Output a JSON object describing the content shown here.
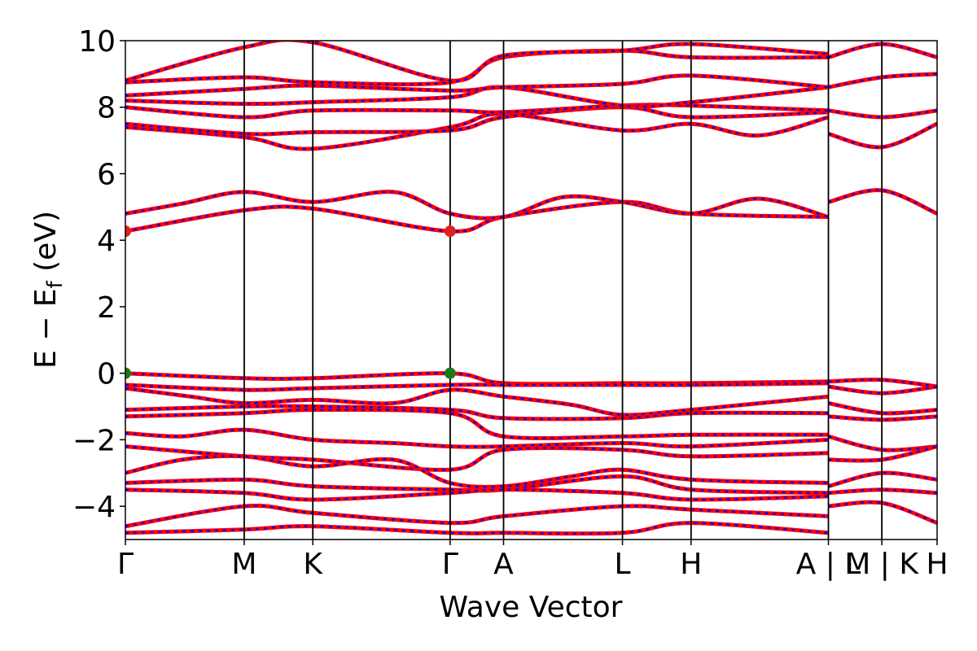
{
  "chart_data": {
    "type": "line",
    "title": "",
    "xlabel": "Wave Vector",
    "ylabel_main": "E − E",
    "ylabel_sub": "f",
    "ylabel_unit": " (eV)",
    "ylim": [
      -5,
      10
    ],
    "yticks": [
      -4,
      -2,
      0,
      2,
      4,
      6,
      8,
      10
    ],
    "ytick_labels": [
      "−4",
      "−2",
      "0",
      "2",
      "4",
      "6",
      "8",
      "10"
    ],
    "x_range": [
      0,
      1
    ],
    "kpoints": [
      {
        "label": "Γ",
        "x": 0.0
      },
      {
        "label": "M",
        "x": 0.1464
      },
      {
        "label": "K",
        "x": 0.2309
      },
      {
        "label": "Γ",
        "x": 0.4001
      },
      {
        "label": "A",
        "x": 0.4659
      },
      {
        "label": "L",
        "x": 0.6124
      },
      {
        "label": "H",
        "x": 0.6969
      },
      {
        "label": "A | L",
        "x": 0.8661
      },
      {
        "label": "M | K",
        "x": 0.9319
      },
      {
        "label": "H",
        "x": 1.0
      }
    ],
    "series_colors": {
      "spin_up": "#ff0000",
      "spin_down": "#0000ff"
    },
    "markers": [
      {
        "x": 0.0,
        "y": 4.27,
        "color": "#e02020"
      },
      {
        "x": 0.4001,
        "y": 4.27,
        "color": "#e02020"
      },
      {
        "x": 0.0,
        "y": 0.0,
        "color": "#1a7a1a"
      },
      {
        "x": 0.4001,
        "y": 0.0,
        "color": "#1a7a1a"
      }
    ],
    "bands": [
      {
        "x": [
          0,
          0.146,
          0.231,
          0.4,
          0.466,
          0.612,
          0.697,
          0.866
        ],
        "y": [
          0.0,
          -0.15,
          -0.15,
          0.0,
          -0.3,
          -0.3,
          -0.3,
          -0.25
        ]
      },
      {
        "x": [
          0,
          0.146,
          0.231,
          0.4,
          0.466,
          0.612,
          0.697,
          0.866
        ],
        "y": [
          -0.35,
          -0.5,
          -0.45,
          -0.35,
          -0.35,
          -0.35,
          -0.35,
          -0.3
        ]
      },
      {
        "x": [
          0,
          0.08,
          0.146,
          0.231,
          0.33,
          0.4,
          0.466,
          0.55,
          0.612,
          0.697,
          0.866
        ],
        "y": [
          -0.45,
          -0.7,
          -0.9,
          -0.8,
          -0.9,
          -0.5,
          -0.7,
          -0.95,
          -1.25,
          -1.1,
          -0.7
        ]
      },
      {
        "x": [
          0,
          0.146,
          0.231,
          0.4,
          0.466,
          0.612,
          0.697,
          0.866
        ],
        "y": [
          -1.1,
          -1.0,
          -1.0,
          -1.1,
          -1.35,
          -1.35,
          -1.2,
          -1.2
        ]
      },
      {
        "x": [
          0,
          0.146,
          0.231,
          0.4,
          0.466,
          0.612,
          0.697,
          0.866
        ],
        "y": [
          -1.3,
          -1.2,
          -1.1,
          -1.2,
          -1.9,
          -1.9,
          -1.85,
          -1.85
        ]
      },
      {
        "x": [
          0,
          0.07,
          0.146,
          0.231,
          0.33,
          0.4,
          0.466,
          0.612,
          0.697,
          0.866
        ],
        "y": [
          -1.8,
          -1.9,
          -1.7,
          -2.0,
          -2.1,
          -2.2,
          -2.2,
          -2.1,
          -2.2,
          -2.0
        ]
      },
      {
        "x": [
          0,
          0.146,
          0.231,
          0.4,
          0.466,
          0.612,
          0.697,
          0.866
        ],
        "y": [
          -2.2,
          -2.5,
          -2.6,
          -2.9,
          -2.3,
          -2.3,
          -2.5,
          -2.4
        ]
      },
      {
        "x": [
          0,
          0.07,
          0.146,
          0.231,
          0.33,
          0.4,
          0.466,
          0.55,
          0.612,
          0.697,
          0.866
        ],
        "y": [
          -3.0,
          -2.6,
          -2.5,
          -2.8,
          -2.6,
          -3.3,
          -3.4,
          -3.1,
          -2.9,
          -3.2,
          -3.3
        ]
      },
      {
        "x": [
          0,
          0.146,
          0.231,
          0.4,
          0.466,
          0.612,
          0.697,
          0.866
        ],
        "y": [
          -3.3,
          -3.2,
          -3.4,
          -3.5,
          -3.5,
          -3.1,
          -3.5,
          -3.6
        ]
      },
      {
        "x": [
          0,
          0.146,
          0.231,
          0.4,
          0.466,
          0.612,
          0.697,
          0.866
        ],
        "y": [
          -3.5,
          -3.6,
          -3.8,
          -3.6,
          -3.5,
          -3.6,
          -3.8,
          -3.7
        ]
      },
      {
        "x": [
          0,
          0.146,
          0.231,
          0.4,
          0.466,
          0.612,
          0.697,
          0.866
        ],
        "y": [
          -4.6,
          -4.0,
          -4.2,
          -4.5,
          -4.3,
          -4.0,
          -4.1,
          -4.3
        ]
      },
      {
        "x": [
          0,
          0.146,
          0.231,
          0.4,
          0.466,
          0.612,
          0.697,
          0.866
        ],
        "y": [
          -4.8,
          -4.7,
          -4.6,
          -4.8,
          -4.8,
          -4.8,
          -4.5,
          -4.8
        ]
      },
      {
        "x": [
          0,
          0.146,
          0.231,
          0.4,
          0.466,
          0.612,
          0.697,
          0.866
        ],
        "y": [
          4.27,
          4.9,
          4.95,
          4.27,
          4.7,
          5.15,
          4.8,
          4.7
        ]
      },
      {
        "x": [
          0,
          0.07,
          0.146,
          0.231,
          0.33,
          0.4,
          0.466,
          0.54,
          0.612,
          0.697,
          0.78,
          0.866
        ],
        "y": [
          4.8,
          5.1,
          5.45,
          5.15,
          5.45,
          4.8,
          4.7,
          5.3,
          5.15,
          4.8,
          5.25,
          4.7
        ]
      },
      {
        "x": [
          0,
          0.146,
          0.231,
          0.4,
          0.466,
          0.612,
          0.697,
          0.78,
          0.866
        ],
        "y": [
          7.4,
          7.1,
          6.75,
          7.4,
          7.8,
          7.3,
          7.5,
          7.15,
          7.7
        ]
      },
      {
        "x": [
          0,
          0.146,
          0.231,
          0.4,
          0.466,
          0.612,
          0.697,
          0.866
        ],
        "y": [
          7.5,
          7.2,
          7.25,
          7.3,
          7.7,
          8.0,
          7.7,
          7.85
        ]
      },
      {
        "x": [
          0,
          0.146,
          0.231,
          0.4,
          0.466,
          0.612,
          0.697,
          0.866
        ],
        "y": [
          8.0,
          7.7,
          7.9,
          7.9,
          7.85,
          8.05,
          8.05,
          7.9
        ]
      },
      {
        "x": [
          0,
          0.146,
          0.231,
          0.4,
          0.466,
          0.612,
          0.697,
          0.866
        ],
        "y": [
          8.2,
          8.1,
          8.15,
          8.3,
          8.6,
          8.05,
          8.15,
          8.6
        ]
      },
      {
        "x": [
          0,
          0.146,
          0.231,
          0.4,
          0.466,
          0.612,
          0.697,
          0.866
        ],
        "y": [
          8.35,
          8.55,
          8.65,
          8.5,
          8.6,
          8.7,
          8.95,
          8.6
        ]
      },
      {
        "x": [
          0,
          0.146,
          0.231,
          0.4,
          0.466,
          0.612,
          0.697,
          0.866
        ],
        "y": [
          8.75,
          8.9,
          8.75,
          8.75,
          9.5,
          9.7,
          9.5,
          9.5
        ]
      },
      {
        "x": [
          0,
          0.146,
          0.231,
          0.4,
          0.466,
          0.612,
          0.697,
          0.866
        ],
        "y": [
          8.8,
          9.8,
          9.95,
          8.8,
          9.55,
          9.7,
          9.9,
          9.6
        ]
      },
      {
        "x": [
          0.866,
          0.9319,
          1.0
        ],
        "y": [
          -0.25,
          -0.2,
          -0.4
        ]
      },
      {
        "x": [
          0.866,
          0.9319,
          1.0
        ],
        "y": [
          -0.4,
          -0.6,
          -0.4
        ]
      },
      {
        "x": [
          0.866,
          0.9319,
          1.0
        ],
        "y": [
          -0.9,
          -1.2,
          -1.1
        ]
      },
      {
        "x": [
          0.866,
          0.9319,
          1.0
        ],
        "y": [
          -1.3,
          -1.4,
          -1.3
        ]
      },
      {
        "x": [
          0.866,
          0.9319,
          1.0
        ],
        "y": [
          -1.9,
          -2.3,
          -2.2
        ]
      },
      {
        "x": [
          0.866,
          0.9319,
          1.0
        ],
        "y": [
          -2.6,
          -2.6,
          -2.2
        ]
      },
      {
        "x": [
          0.866,
          0.9319,
          1.0
        ],
        "y": [
          -3.4,
          -3.0,
          -3.2
        ]
      },
      {
        "x": [
          0.866,
          0.9319,
          1.0
        ],
        "y": [
          -3.6,
          -3.5,
          -3.6
        ]
      },
      {
        "x": [
          0.866,
          0.9319,
          1.0
        ],
        "y": [
          -4.0,
          -3.9,
          -4.5
        ]
      },
      {
        "x": [
          0.866,
          0.9319,
          1.0
        ],
        "y": [
          5.15,
          5.5,
          4.8
        ]
      },
      {
        "x": [
          0.866,
          0.9319,
          1.0
        ],
        "y": [
          7.2,
          6.8,
          7.5
        ]
      },
      {
        "x": [
          0.866,
          0.9319,
          1.0
        ],
        "y": [
          7.9,
          7.7,
          7.9
        ]
      },
      {
        "x": [
          0.866,
          0.9319,
          1.0
        ],
        "y": [
          8.6,
          8.9,
          9.0
        ]
      },
      {
        "x": [
          0.866,
          0.9319,
          1.0
        ],
        "y": [
          9.5,
          9.9,
          9.5
        ]
      }
    ]
  }
}
